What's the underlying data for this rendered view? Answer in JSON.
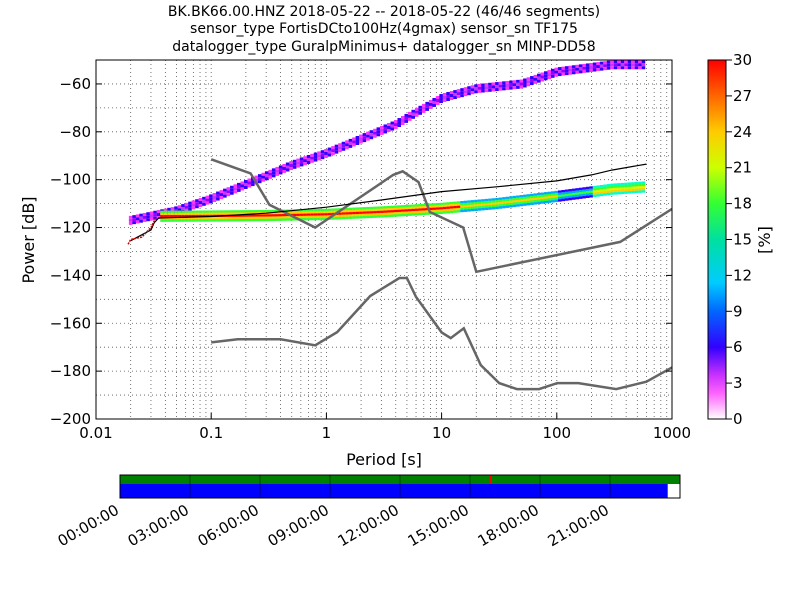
{
  "chart_data": {
    "type": "heatmap",
    "title_lines": [
      "BK.BK66.00.HNZ   2018-05-22 -- 2018-05-22  (46/46 segments)",
      "sensor_type FortisDCto100Hz(4gmax) sensor_sn TF175",
      "datalogger_type GuralpMinimus+ datalogger_sn MINP-DD58"
    ],
    "xlabel": "Period [s]",
    "ylabel": "Power [dB]",
    "x_scale": "log",
    "xlim": [
      0.01,
      1000
    ],
    "ylim": [
      -200,
      -50
    ],
    "x_ticks": [
      {
        "value": 0.01,
        "label": "0.01"
      },
      {
        "value": 0.1,
        "label": "0.1"
      },
      {
        "value": 1,
        "label": "1"
      },
      {
        "value": 10,
        "label": "10"
      },
      {
        "value": 100,
        "label": "100"
      },
      {
        "value": 1000,
        "label": "1000"
      }
    ],
    "y_ticks": [
      {
        "value": -60,
        "label": "−60"
      },
      {
        "value": -80,
        "label": "−80"
      },
      {
        "value": -100,
        "label": "−100"
      },
      {
        "value": -120,
        "label": "−120"
      },
      {
        "value": -140,
        "label": "−140"
      },
      {
        "value": -160,
        "label": "−160"
      },
      {
        "value": -180,
        "label": "−180"
      },
      {
        "value": -200,
        "label": "−200"
      }
    ],
    "colorbar": {
      "label": "[%]",
      "range": [
        0,
        30
      ],
      "ticks": [
        {
          "value": 0,
          "label": "0"
        },
        {
          "value": 3,
          "label": "3"
        },
        {
          "value": 6,
          "label": "6"
        },
        {
          "value": 9,
          "label": "9"
        },
        {
          "value": 12,
          "label": "12"
        },
        {
          "value": 15,
          "label": "15"
        },
        {
          "value": 18,
          "label": "18"
        },
        {
          "value": 21,
          "label": "21"
        },
        {
          "value": 24,
          "label": "24"
        },
        {
          "value": 27,
          "label": "27"
        },
        {
          "value": 30,
          "label": "30"
        }
      ]
    },
    "nlnm": [
      [
        0.1,
        -168
      ],
      [
        0.17,
        -166.7
      ],
      [
        0.4,
        -166.7
      ],
      [
        0.8,
        -169.2
      ],
      [
        1.24,
        -163.7
      ],
      [
        2.4,
        -148.6
      ],
      [
        4.3,
        -141.1
      ],
      [
        5,
        -141.1
      ],
      [
        6,
        -149
      ],
      [
        10,
        -163.8
      ],
      [
        12,
        -166.2
      ],
      [
        15.6,
        -162.1
      ],
      [
        21.9,
        -177.5
      ],
      [
        31.6,
        -185
      ],
      [
        45,
        -187.5
      ],
      [
        70,
        -187.5
      ],
      [
        101,
        -185
      ],
      [
        154,
        -185
      ],
      [
        328,
        -187.5
      ],
      [
        600,
        -184.4
      ],
      [
        1000,
        -178.5
      ]
    ],
    "nhnm": [
      [
        0.1,
        -91.5
      ],
      [
        0.22,
        -97.4
      ],
      [
        0.32,
        -110.5
      ],
      [
        0.8,
        -120
      ],
      [
        3.8,
        -98
      ],
      [
        4.6,
        -96.5
      ],
      [
        6.3,
        -101
      ],
      [
        7.9,
        -113.5
      ],
      [
        15.4,
        -120
      ],
      [
        20,
        -138.5
      ],
      [
        354.8,
        -126
      ],
      [
        1000,
        -112.2
      ]
    ],
    "median_line": [
      [
        0.02,
        -125.5
      ],
      [
        0.03,
        -121
      ],
      [
        0.032,
        -118
      ],
      [
        0.035,
        -116
      ],
      [
        0.1,
        -115.4
      ],
      [
        0.3,
        -114
      ],
      [
        1,
        -111.5
      ],
      [
        3,
        -108.5
      ],
      [
        10,
        -105
      ],
      [
        30,
        -103
      ],
      [
        100,
        -100.5
      ],
      [
        200,
        -98
      ],
      [
        300,
        -96
      ],
      [
        600,
        -93.5
      ]
    ],
    "noise_start_line": [
      [
        0.019,
        -127
      ],
      [
        0.02,
        -125
      ],
      [
        0.025,
        -124
      ],
      [
        0.03,
        -120
      ],
      [
        0.033,
        -116
      ]
    ],
    "pdf_bands": [
      {
        "name": "upper",
        "points": [
          [
            0.02,
            -117
          ],
          [
            0.05,
            -113
          ],
          [
            0.1,
            -108
          ],
          [
            0.2,
            -102
          ],
          [
            0.5,
            -94
          ],
          [
            1,
            -89
          ],
          [
            2,
            -83
          ],
          [
            4,
            -77
          ],
          [
            6,
            -72
          ],
          [
            10,
            -66
          ],
          [
            20,
            -62
          ],
          [
            50,
            -60
          ],
          [
            100,
            -55
          ],
          [
            300,
            -52
          ],
          [
            600,
            -52
          ]
        ]
      },
      {
        "name": "lower",
        "points": [
          [
            0.035,
            -115.3
          ],
          [
            0.1,
            -115.2
          ],
          [
            0.3,
            -115
          ],
          [
            1,
            -114.5
          ],
          [
            3,
            -113.5
          ],
          [
            10,
            -112
          ],
          [
            30,
            -110
          ],
          [
            100,
            -107
          ],
          [
            300,
            -104
          ],
          [
            600,
            -103
          ]
        ]
      }
    ],
    "timeline": {
      "labels": [
        "00:00:00",
        "03:00:00",
        "06:00:00",
        "09:00:00",
        "12:00:00",
        "15:00:00",
        "18:00:00",
        "21:00:00"
      ],
      "coverage_fraction": 0.978,
      "gap_marker_hour": 15.85,
      "colors": {
        "data": "#0000ff",
        "quality": "#008000",
        "gap": "#ff0000"
      }
    }
  }
}
